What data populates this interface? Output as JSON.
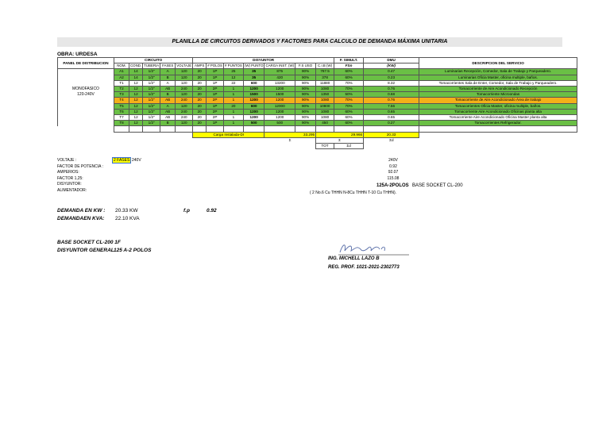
{
  "title": "PLANILLA DE CIRCUITOS DERIVADOS Y FACTORES PARA CALCULO DE DEMANDA MÁXIMA UNITARIA",
  "obra": "OBRA: URDESA",
  "headers": {
    "panel": "PANEL DE DISTRIBUCION",
    "circuito": "CIRCUITO",
    "disyuntor": "DISYUNTOR",
    "f_simult": "F. SIMULT.",
    "fsn": "FSn",
    "dmu": "DMU",
    "kw": "(KW)",
    "descripcion": "DESCRIPCION DEL SERVICIO",
    "cols": [
      "NOM.",
      "COND.",
      "TUBERIA",
      "FASES",
      "VOLTAJE",
      "AMPS",
      "# POLOS",
      "# PUNTOS",
      "(W) PUNTO",
      "CARGA INST. (W)",
      "F.S USO",
      "C.I.B (W)"
    ]
  },
  "panel_desc": [
    "MONOFASICO",
    "120-240V"
  ],
  "rows": [
    {
      "nom": "A1",
      "cond": "14",
      "tub": "1/2\"",
      "fases": "A",
      "volt": "120",
      "amps": "20",
      "polos": "1P",
      "puntos": "25",
      "w": "35",
      "carga": "875",
      "fs": "90%",
      "cib": "787.5",
      "fsim": "60%",
      "dmu": "0.47",
      "desc": "Luminarias Recepción, Comedor, Sala de Trabajo y Parqueadero.",
      "color": "g"
    },
    {
      "nom": "A2",
      "cond": "14",
      "tub": "1/2\"",
      "fases": "B",
      "volt": "120",
      "amps": "20",
      "polos": "1P",
      "puntos": "12",
      "w": "35",
      "carga": "420",
      "fs": "90%",
      "cib": "378",
      "fsim": "60%",
      "dmu": "0.23",
      "desc": "Luminarias Oficia Master, oficina multiple, baños.",
      "color": "g"
    },
    {
      "nom": "T1",
      "cond": "12",
      "tub": "1/2\"",
      "fases": "A",
      "volt": "120",
      "amps": "20",
      "polos": "1P",
      "puntos": "22",
      "w": "600",
      "carga": "13200",
      "fs": "90%",
      "cib": "11880",
      "fsim": "70%",
      "dmu": "8.32",
      "desc": "Tomacorrientes Sala de Enter, Comedor, Sala de Trabajo y Parqueadero.",
      "color": ""
    },
    {
      "nom": "T2",
      "cond": "12",
      "tub": "1/2\"",
      "fases": "AB",
      "volt": "240",
      "amps": "20",
      "polos": "2P",
      "puntos": "1",
      "w": "1200",
      "carga": "1200",
      "fs": "90%",
      "cib": "1080",
      "fsim": "70%",
      "dmu": "0.76",
      "desc": "Tomacorriente de Aire Acondicionado Recepción",
      "color": "g"
    },
    {
      "nom": "T3",
      "cond": "12",
      "tub": "1/2\"",
      "fases": "B",
      "volt": "120",
      "amps": "20",
      "polos": "1P",
      "puntos": "1",
      "w": "1500",
      "carga": "1500",
      "fs": "90%",
      "cib": "1350",
      "fsim": "50%",
      "dmu": "0.68",
      "desc": "Tomacorriente Microondas",
      "color": "g"
    },
    {
      "nom": "T4",
      "cond": "12",
      "tub": "1/2\"",
      "fases": "AB",
      "volt": "240",
      "amps": "20",
      "polos": "2P",
      "puntos": "1",
      "w": "1200",
      "carga": "1200",
      "fs": "90%",
      "cib": "1080",
      "fsim": "70%",
      "dmu": "0.76",
      "desc": "Tomacorriente de Aire Acondicionado Área de trabajo",
      "color": "o"
    },
    {
      "nom": "T5",
      "cond": "12",
      "tub": "1/2\"",
      "fases": "A",
      "volt": "120",
      "amps": "20",
      "polos": "1P",
      "puntos": "20",
      "w": "600",
      "carga": "12000",
      "fs": "90%",
      "cib": "10800",
      "fsim": "70%",
      "dmu": "7.56",
      "desc": "Tomacorrientes Oficia Master, oficina multiple, baños.",
      "color": "g"
    },
    {
      "nom": "T6",
      "cond": "12",
      "tub": "1/2\"",
      "fases": "AB",
      "volt": "240",
      "amps": "20",
      "polos": "2P",
      "puntos": "1",
      "w": "1200",
      "carga": "1200",
      "fs": "90%",
      "cib": "1080",
      "fsim": "60%",
      "dmu": "0.65",
      "desc": "Tomacorriente Aire Acondicionado Oficinas planta alta",
      "color": "g"
    },
    {
      "nom": "T7",
      "cond": "12",
      "tub": "1/2\"",
      "fases": "AB",
      "volt": "240",
      "amps": "20",
      "polos": "2P",
      "puntos": "1",
      "w": "1200",
      "carga": "1200",
      "fs": "90%",
      "cib": "1080",
      "fsim": "60%",
      "dmu": "0.65",
      "desc": "Tomacorriente Aire Acondicionado Oficina Master planta alta",
      "color": ""
    },
    {
      "nom": "T8",
      "cond": "12",
      "tub": "1/2\"",
      "fases": "B",
      "volt": "120",
      "amps": "20",
      "polos": "1P",
      "puntos": "1",
      "w": "500",
      "carga": "500",
      "fs": "90%",
      "cib": "450",
      "fsim": "60%",
      "dmu": "0.27",
      "desc": "Tomacorrientes Refrigerador.",
      "color": "g"
    }
  ],
  "totals": {
    "carga_label": "Carga Instalada-DI",
    "carga": "33.295",
    "cib": "29.966",
    "dmu": "20.33"
  },
  "sum_symbols": {
    "carga": "Σ",
    "cib": "Σ",
    "cib_sub": "TOT",
    "fsn": "Σd",
    "dmu": "Σd"
  },
  "summary": [
    {
      "label": "VOLTAJE :",
      "value": "240V"
    },
    {
      "label": "FACTOR DE POTENCIA :",
      "value": "0.92"
    },
    {
      "label": "AMPERIOS:",
      "value": "92.07"
    },
    {
      "label": "FACTOR 1,25:",
      "value": "115.08"
    },
    {
      "label": "DISYUNTOR:",
      "value": "125A-2POLOS"
    },
    {
      "label": "ALIMENTADOR:",
      "value": "( 2 No.6 Cu THHN N-8Cu THHN T-10 Cu THHN)."
    }
  ],
  "fases_note": "2 FASES",
  "fases_volt": "240V",
  "base_socket_right": "BASE SOCKET CL-200",
  "demanda": {
    "kw_label": "DEMANDA EN KW :",
    "kw_value": "20.33",
    "kw_unit": "KW",
    "kva_label": "DEMANDAEN KVA:",
    "kva_value": "22.10",
    "kva_unit": "KVA",
    "fp_label": "f.p",
    "fp_value": "0.92"
  },
  "base_socket": "BASE SOCKET CL-200 1F",
  "disyuntor_general_label": "DISYUNTOR GENERAL",
  "disyuntor_general_value": "125 A-2 POLOS",
  "engineer": "ING. MICHELL LAZO B",
  "reg": "REG. PROF. 1021-2021-2302773",
  "colors": {
    "green": "#6abf45",
    "orange": "#f4b019",
    "yellow": "#ffff00",
    "title_bg": "#e7e7e7"
  }
}
